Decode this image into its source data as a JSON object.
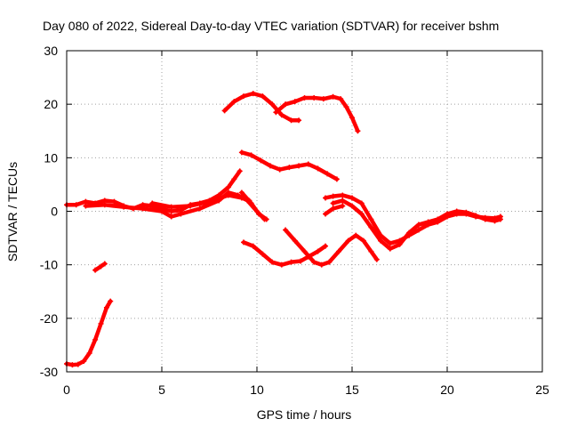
{
  "chart_data": {
    "type": "scatter",
    "title": "Day 080 of 2022, Sidereal Day-to-day VTEC variation (SDTVAR) for receiver bshm",
    "xlabel": "GPS time / hours",
    "ylabel": "SDTVAR / TECUs",
    "xlim": [
      0,
      25
    ],
    "ylim": [
      -30,
      30
    ],
    "xticks": [
      0,
      5,
      10,
      15,
      20,
      25
    ],
    "yticks": [
      -30,
      -20,
      -10,
      0,
      10,
      20,
      30
    ],
    "grid": true,
    "marker_color": "#ff0000",
    "series": [
      {
        "name": "trace-1",
        "points": [
          [
            0,
            -28.5
          ],
          [
            0.3,
            -28.7
          ],
          [
            0.6,
            -28.6
          ],
          [
            0.9,
            -28
          ],
          [
            1.2,
            -26.5
          ],
          [
            1.5,
            -24
          ],
          [
            1.8,
            -21
          ],
          [
            2.1,
            -18
          ],
          [
            2.3,
            -16.8
          ]
        ]
      },
      {
        "name": "trace-2",
        "points": [
          [
            1.5,
            -11
          ],
          [
            1.8,
            -10.3
          ],
          [
            2.0,
            -9.8
          ]
        ]
      },
      {
        "name": "trace-3",
        "points": [
          [
            0,
            1.2
          ],
          [
            0.5,
            1.2
          ],
          [
            1.0,
            1.8
          ],
          [
            1.5,
            1.5
          ],
          [
            2.0,
            2.0
          ],
          [
            2.5,
            1.8
          ],
          [
            3.0,
            1.0
          ],
          [
            3.5,
            0.5
          ],
          [
            4.0,
            1.2
          ],
          [
            4.5,
            1.0
          ],
          [
            5.0,
            0.5
          ],
          [
            5.5,
            0
          ],
          [
            6.0,
            0.2
          ],
          [
            6.5,
            1.2
          ],
          [
            7.0,
            1.5
          ],
          [
            7.5,
            2.0
          ],
          [
            8.0,
            3.0
          ],
          [
            8.5,
            4.5
          ],
          [
            8.8,
            6.0
          ],
          [
            9.1,
            7.5
          ]
        ]
      },
      {
        "name": "trace-4",
        "points": [
          [
            1.0,
            1.0
          ],
          [
            2.0,
            1.2
          ],
          [
            3.0,
            0.8
          ],
          [
            4.0,
            0.5
          ],
          [
            5.0,
            0
          ],
          [
            5.5,
            -1.0
          ],
          [
            6.0,
            -0.5
          ],
          [
            7.0,
            0.5
          ],
          [
            8.0,
            2.0
          ],
          [
            8.5,
            3.5
          ],
          [
            9.0,
            3.0
          ],
          [
            9.5,
            2.0
          ],
          [
            10.0,
            0
          ],
          [
            10.4,
            -1.5
          ]
        ]
      },
      {
        "name": "trace-5",
        "points": [
          [
            4.5,
            1.5
          ],
          [
            5.5,
            0.8
          ],
          [
            6.5,
            1.0
          ],
          [
            7.5,
            1.8
          ],
          [
            8.5,
            3.0
          ],
          [
            9.2,
            2.5
          ],
          [
            9.6,
            2.0
          ]
        ]
      },
      {
        "name": "trace-6",
        "points": [
          [
            8.3,
            18.8
          ],
          [
            8.8,
            20.5
          ],
          [
            9.3,
            21.5
          ],
          [
            9.8,
            22
          ],
          [
            10.3,
            21.5
          ],
          [
            10.8,
            20
          ],
          [
            11.3,
            18
          ],
          [
            11.8,
            17
          ],
          [
            12.2,
            17
          ]
        ]
      },
      {
        "name": "trace-7",
        "points": [
          [
            11.0,
            18.5
          ],
          [
            11.5,
            20
          ],
          [
            12.0,
            20.5
          ],
          [
            12.5,
            21.2
          ],
          [
            13.0,
            21.2
          ],
          [
            13.5,
            21.0
          ],
          [
            14.0,
            21.4
          ],
          [
            14.4,
            21.0
          ],
          [
            14.7,
            19.5
          ],
          [
            15.0,
            17.5
          ],
          [
            15.3,
            15.0
          ]
        ]
      },
      {
        "name": "trace-8",
        "points": [
          [
            9.2,
            11
          ],
          [
            9.7,
            10.5
          ],
          [
            10.2,
            9.5
          ],
          [
            10.7,
            8.5
          ],
          [
            11.2,
            7.8
          ],
          [
            11.7,
            8.2
          ],
          [
            12.2,
            8.5
          ],
          [
            12.7,
            8.8
          ],
          [
            13.2,
            8.0
          ],
          [
            13.7,
            7.0
          ],
          [
            14.2,
            6.0
          ]
        ]
      },
      {
        "name": "trace-9",
        "points": [
          [
            9.2,
            3.5
          ],
          [
            9.7,
            1.5
          ],
          [
            10.1,
            -0.5
          ],
          [
            10.5,
            -1.5
          ]
        ]
      },
      {
        "name": "trace-10",
        "points": [
          [
            9.3,
            -5.8
          ],
          [
            9.8,
            -6.5
          ],
          [
            10.3,
            -8
          ],
          [
            10.8,
            -9.5
          ],
          [
            11.3,
            -10
          ],
          [
            11.8,
            -9.5
          ],
          [
            12.3,
            -9.3
          ],
          [
            12.7,
            -8.5
          ],
          [
            13.2,
            -7.5
          ],
          [
            13.6,
            -6.5
          ]
        ]
      },
      {
        "name": "trace-11",
        "points": [
          [
            11.5,
            -3.5
          ],
          [
            12.0,
            -5.5
          ],
          [
            12.5,
            -7.5
          ],
          [
            13.0,
            -9.5
          ],
          [
            13.4,
            -10
          ],
          [
            13.8,
            -9.5
          ],
          [
            14.3,
            -7.5
          ],
          [
            14.8,
            -5.5
          ],
          [
            15.2,
            -4.5
          ],
          [
            15.6,
            -5.5
          ],
          [
            16.0,
            -7.5
          ],
          [
            16.3,
            -9
          ]
        ]
      },
      {
        "name": "trace-12",
        "points": [
          [
            13.6,
            -0.5
          ],
          [
            14.0,
            0.5
          ],
          [
            14.5,
            1.0
          ]
        ]
      },
      {
        "name": "trace-13",
        "points": [
          [
            13.6,
            2.5
          ],
          [
            14.0,
            2.8
          ],
          [
            14.5,
            3.0
          ],
          [
            15.0,
            2.5
          ],
          [
            15.5,
            1.5
          ],
          [
            16.0,
            -1.5
          ],
          [
            16.5,
            -4.5
          ],
          [
            17.0,
            -6.0
          ],
          [
            17.5,
            -5.5
          ],
          [
            18.0,
            -4.5
          ],
          [
            18.5,
            -3.5
          ],
          [
            19.0,
            -2.5
          ],
          [
            19.5,
            -2.0
          ],
          [
            20.0,
            -1.0
          ],
          [
            20.5,
            -0.5
          ],
          [
            21.0,
            -0.5
          ],
          [
            21.5,
            -1.0
          ],
          [
            22.0,
            -1.2
          ],
          [
            22.5,
            -1.3
          ],
          [
            22.8,
            -1.0
          ]
        ]
      },
      {
        "name": "trace-14",
        "points": [
          [
            14.0,
            1.5
          ],
          [
            14.5,
            2.0
          ],
          [
            15.0,
            1.0
          ],
          [
            15.5,
            -0.5
          ],
          [
            16.0,
            -3.0
          ],
          [
            16.5,
            -5.5
          ],
          [
            17.0,
            -7.0
          ],
          [
            17.5,
            -6.2
          ],
          [
            18.0,
            -4.0
          ],
          [
            18.5,
            -2.5
          ],
          [
            19.0,
            -2.0
          ],
          [
            19.5,
            -1.5
          ],
          [
            20.0,
            -0.5
          ],
          [
            20.5,
            0
          ],
          [
            21.0,
            -0.2
          ],
          [
            21.5,
            -0.8
          ],
          [
            22.0,
            -1.5
          ],
          [
            22.5,
            -1.8
          ],
          [
            22.8,
            -1.5
          ]
        ]
      }
    ]
  }
}
